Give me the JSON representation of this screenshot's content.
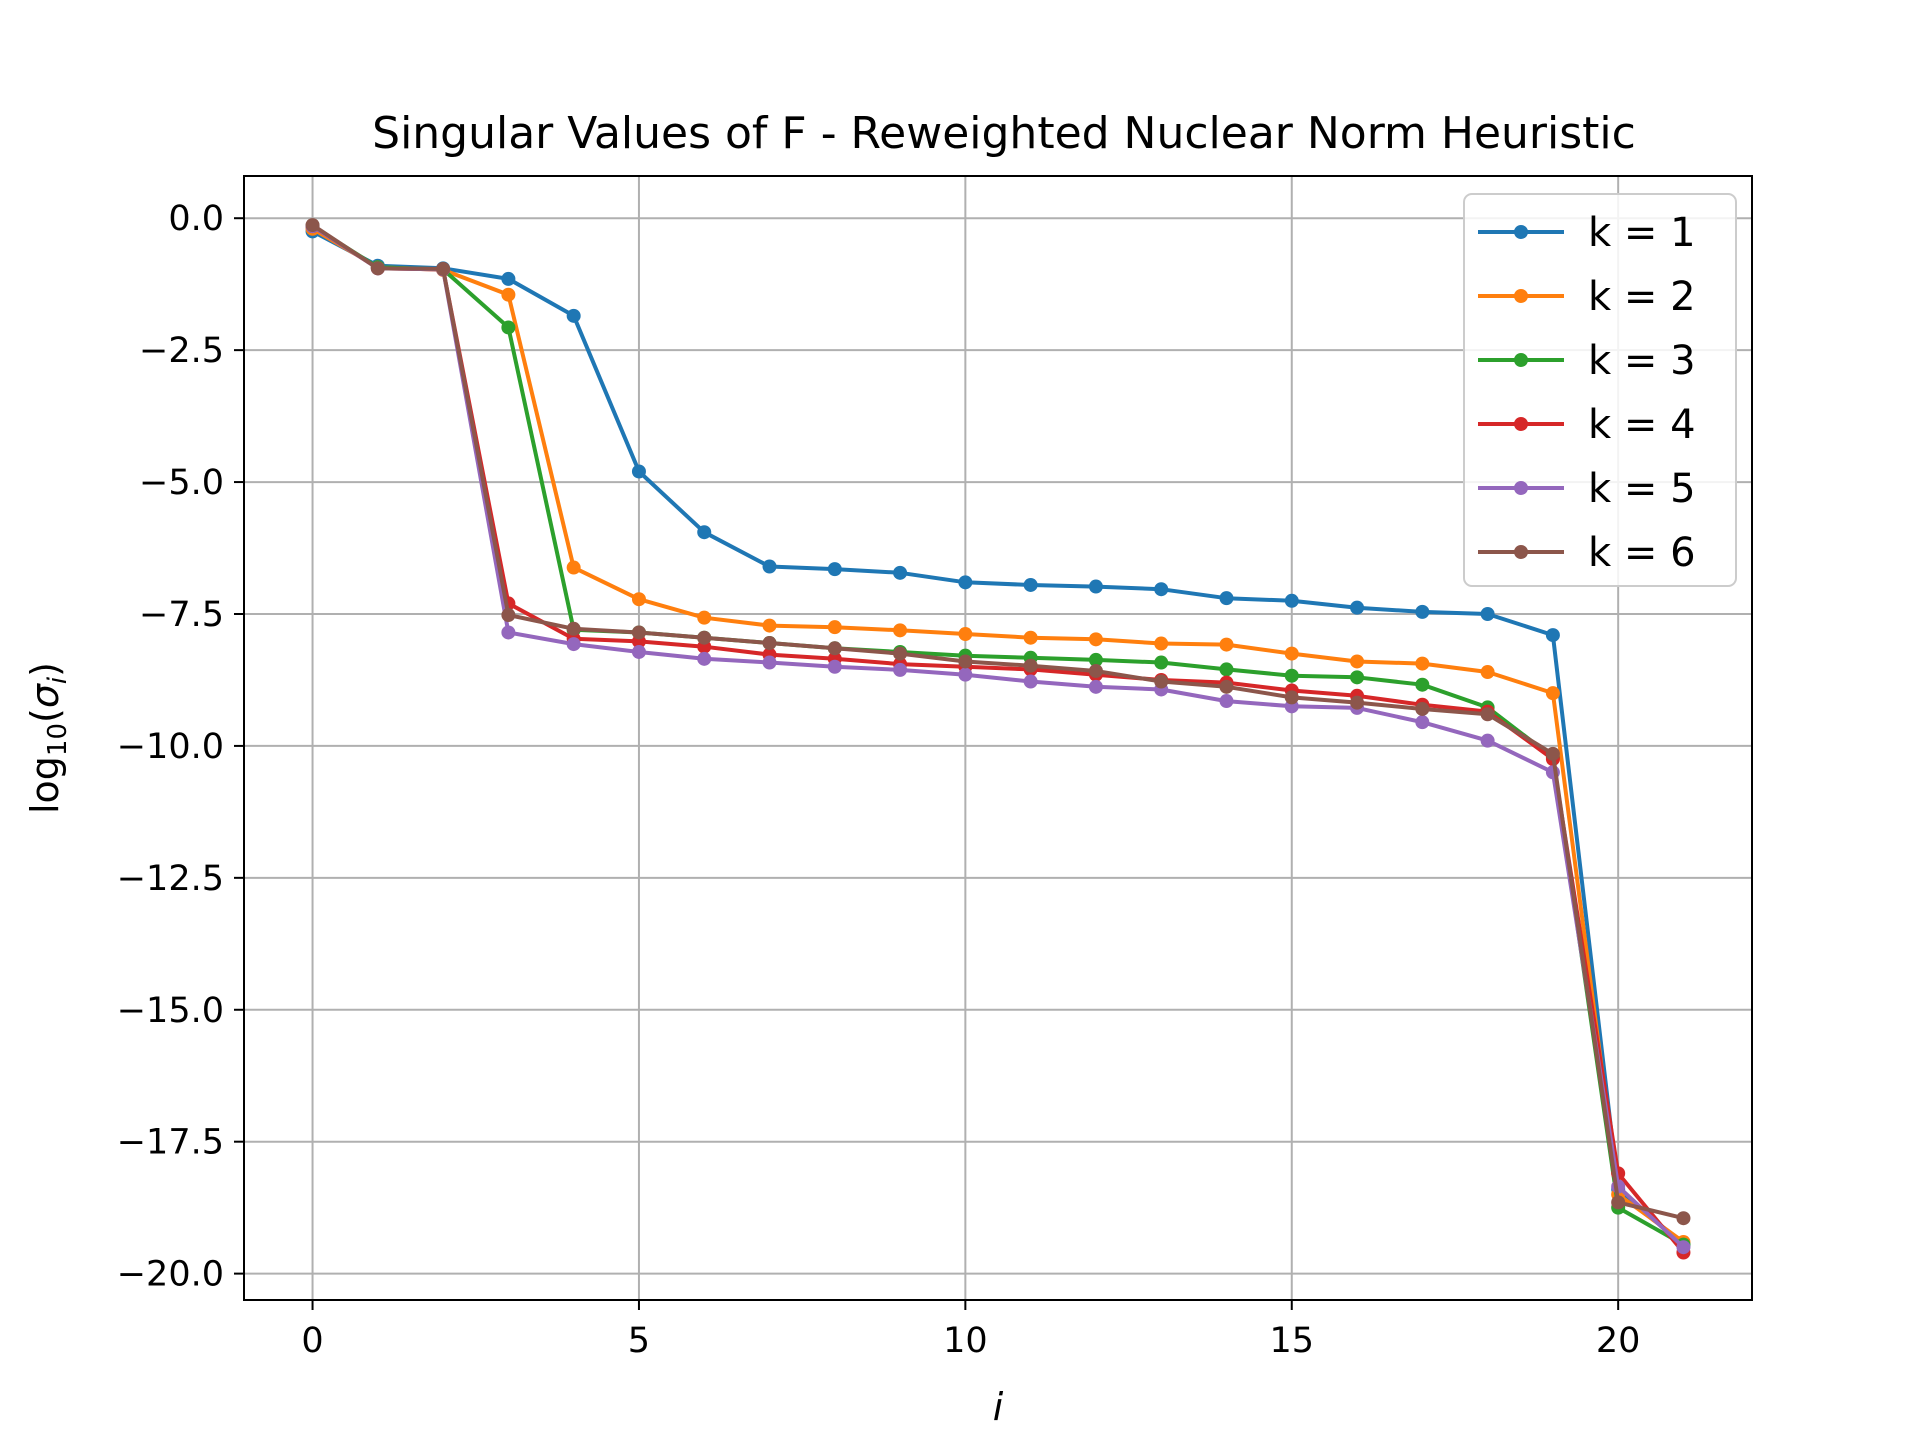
{
  "chart_data": {
    "type": "line",
    "title": "Singular Values of F - Reweighted Nuclear Norm Heuristic",
    "xlabel": "i",
    "ylabel_prefix": "log",
    "ylabel_subscript": "10",
    "ylabel_sigma": "σ",
    "ylabel_sigma_sub": "i",
    "xlim": [
      -1.05,
      22.05
    ],
    "ylim": [
      -20.5,
      0.8
    ],
    "xticks": [
      0,
      5,
      10,
      15,
      20
    ],
    "xtick_labels": [
      "0",
      "5",
      "10",
      "15",
      "20"
    ],
    "yticks": [
      0.0,
      -2.5,
      -5.0,
      -7.5,
      -10.0,
      -12.5,
      -15.0,
      -17.5,
      -20.0
    ],
    "ytick_labels": [
      "0.0",
      "−2.5",
      "−5.0",
      "−7.5",
      "−10.0",
      "−12.5",
      "−15.0",
      "−17.5",
      "−20.0"
    ],
    "grid": true,
    "legend_position": "top-right",
    "x": [
      0,
      1,
      2,
      3,
      4,
      5,
      6,
      7,
      8,
      9,
      10,
      11,
      12,
      13,
      14,
      15,
      16,
      17,
      18,
      19,
      20,
      21
    ],
    "series": [
      {
        "name": "k = 1",
        "color": "#1f77b4",
        "values": [
          -0.25,
          -0.9,
          -0.95,
          -1.15,
          -1.85,
          -4.8,
          -5.95,
          -6.6,
          -6.65,
          -6.72,
          -6.9,
          -6.95,
          -6.98,
          -7.03,
          -7.2,
          -7.25,
          -7.38,
          -7.46,
          -7.5,
          -7.9,
          -18.4,
          -19.45
        ]
      },
      {
        "name": "k = 2",
        "color": "#ff7f0e",
        "values": [
          -0.2,
          -0.93,
          -0.98,
          -1.45,
          -6.62,
          -7.22,
          -7.57,
          -7.72,
          -7.75,
          -7.81,
          -7.88,
          -7.95,
          -7.98,
          -8.06,
          -8.08,
          -8.25,
          -8.4,
          -8.44,
          -8.6,
          -9.0,
          -18.5,
          -19.4
        ]
      },
      {
        "name": "k = 3",
        "color": "#2ca02c",
        "values": [
          -0.15,
          -0.93,
          -0.97,
          -2.07,
          -7.8,
          -7.85,
          -7.95,
          -8.05,
          -8.15,
          -8.22,
          -8.29,
          -8.33,
          -8.37,
          -8.42,
          -8.55,
          -8.67,
          -8.7,
          -8.84,
          -9.27,
          -10.22,
          -18.75,
          -19.45
        ]
      },
      {
        "name": "k = 4",
        "color": "#d62728",
        "values": [
          -0.15,
          -0.95,
          -0.97,
          -7.3,
          -7.97,
          -8.02,
          -8.12,
          -8.27,
          -8.35,
          -8.45,
          -8.5,
          -8.55,
          -8.65,
          -8.75,
          -8.8,
          -8.95,
          -9.05,
          -9.22,
          -9.35,
          -10.25,
          -18.1,
          -19.6
        ]
      },
      {
        "name": "k = 5",
        "color": "#9467bd",
        "values": [
          -0.15,
          -0.95,
          -0.97,
          -7.85,
          -8.07,
          -8.22,
          -8.35,
          -8.42,
          -8.5,
          -8.56,
          -8.65,
          -8.78,
          -8.88,
          -8.93,
          -9.15,
          -9.25,
          -9.28,
          -9.55,
          -9.9,
          -10.5,
          -18.35,
          -19.5
        ]
      },
      {
        "name": "k = 6",
        "color": "#8c564b",
        "values": [
          -0.13,
          -0.95,
          -0.96,
          -7.52,
          -7.78,
          -7.85,
          -7.95,
          -8.05,
          -8.15,
          -8.25,
          -8.4,
          -8.48,
          -8.58,
          -8.78,
          -8.88,
          -9.08,
          -9.18,
          -9.3,
          -9.4,
          -10.15,
          -18.65,
          -18.95
        ]
      }
    ]
  }
}
